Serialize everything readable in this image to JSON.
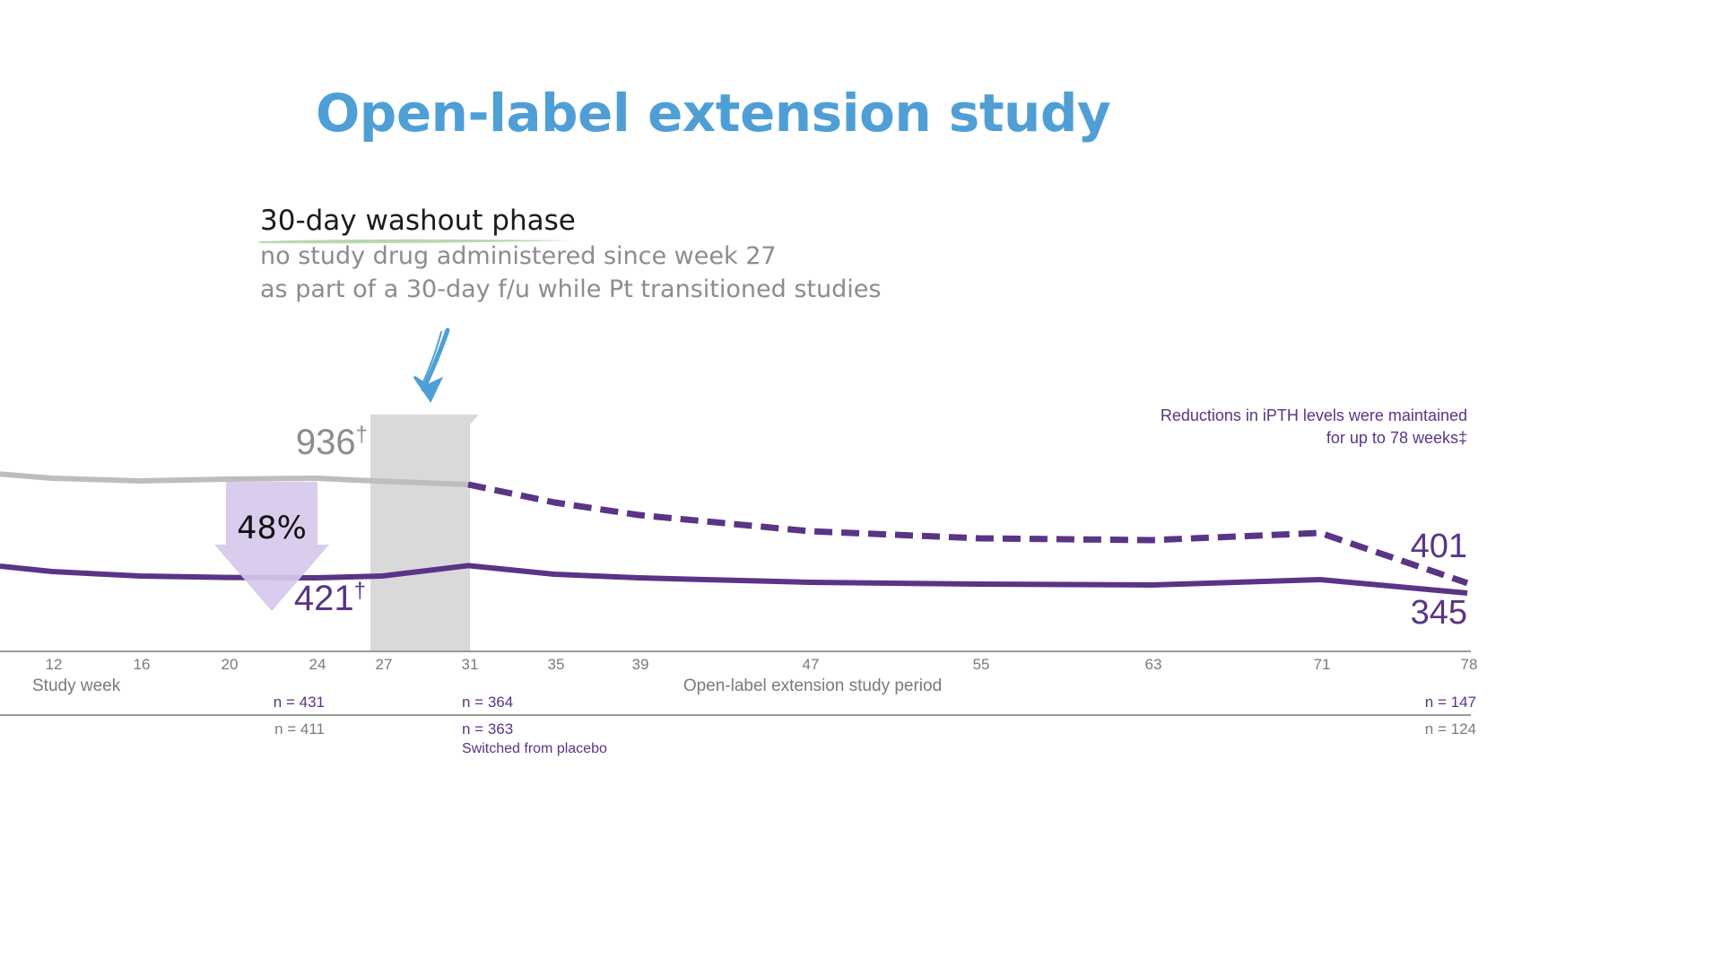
{
  "slide": {
    "title": "Open-label extension study",
    "note_heading": "30-day washout phase",
    "note_lines": [
      "no study drug administered since week 27",
      "as part of a 30-day f/u while Pt transitioned studies"
    ]
  },
  "colors": {
    "title": "#4f9fd6",
    "treatment_line": "#5a3486",
    "placebo_line": "#bdbdbd",
    "washout_band": "#d9d9d9",
    "reduction_arrow": "#d6c8ec",
    "annotation_text": "#5a3486",
    "axis_text": "#7a7a7a",
    "arrow_annotation": "#4f9fd6",
    "underline": "#b9d8b0"
  },
  "chart_data": {
    "type": "line",
    "title": "",
    "xlabel": "Study week",
    "x_period_label": "Open-label extension study period",
    "x_ticks": [
      12,
      16,
      20,
      24,
      27,
      31,
      35,
      39,
      47,
      55,
      63,
      71,
      78
    ],
    "ylabel": "",
    "series": [
      {
        "style": "solid-gray",
        "x": [
          8,
          12,
          16,
          20,
          24,
          27,
          31
        ],
        "y": [
          1008,
          985,
          970,
          980,
          985,
          968,
          950
        ]
      },
      {
        "style": "solid-purple",
        "x": [
          8,
          12,
          16,
          20,
          24,
          27,
          31,
          35,
          39,
          47,
          55,
          63,
          71,
          78
        ],
        "y": [
          495,
          465,
          440,
          432,
          430,
          440,
          498,
          450,
          430,
          405,
          395,
          390,
          420,
          345
        ]
      },
      {
        "style": "dashed-purple",
        "x": [
          31,
          35,
          39,
          47,
          55,
          63,
          71,
          78
        ],
        "y": [
          950,
          850,
          780,
          690,
          650,
          640,
          680,
          401
        ]
      }
    ],
    "point_labels": {
      "placebo_value": "936",
      "placebo_sup": "†",
      "treatment_value": "421",
      "treatment_sup": "†",
      "dashed_end": "401",
      "solid_end": "345",
      "reduction": "48%"
    },
    "annotation": [
      "Reductions in iPTH levels were maintained",
      "for up to 78 weeks‡"
    ],
    "washout_band_weeks": [
      27,
      31
    ],
    "n_rows": {
      "row1": [
        {
          "week": 24,
          "text": "n = 431"
        },
        {
          "week": 31,
          "text": "n = 364"
        },
        {
          "week": 78,
          "text": "n = 147"
        }
      ],
      "row2": [
        {
          "week": 24,
          "text": "n = 411"
        },
        {
          "week": 31,
          "text": "n = 363"
        },
        {
          "week": 78,
          "text": "n = 124"
        }
      ],
      "row2_note": "Switched from placebo"
    }
  }
}
